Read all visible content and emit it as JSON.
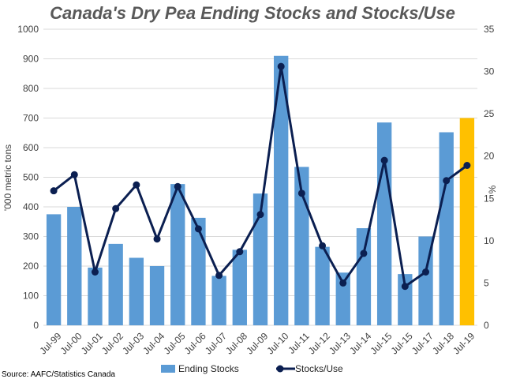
{
  "chart_data": {
    "type": "bar",
    "title": "Canada's Dry Pea Ending Stocks and Stocks/Use",
    "source": "Source: AAFC/Statistics Canada",
    "ylabel": "'000 metric tons",
    "y2label": "%",
    "ylim": [
      0,
      1000
    ],
    "y2lim": [
      0,
      35
    ],
    "yticks": [
      "0",
      "100",
      "200",
      "300",
      "400",
      "500",
      "600",
      "700",
      "800",
      "900",
      "1000"
    ],
    "y2ticks": [
      "0",
      "5",
      "10",
      "15",
      "20",
      "25",
      "30",
      "35"
    ],
    "grid": true,
    "legend_position": "bottom",
    "categories": [
      "Jul-99",
      "Jul-00",
      "Jul-01",
      "Jul-02",
      "Jul-03",
      "Jul-04",
      "Jul-05",
      "Jul-06",
      "Jul-07",
      "Jul-08",
      "Jul-09",
      "Jul-10",
      "Jul-11",
      "Jul-12",
      "Jul-13",
      "Jul-14",
      "Jul-15",
      "Jul-15",
      "Jul-17",
      "Jul-18",
      "Jul-19"
    ],
    "series": [
      {
        "name": "Ending Stocks",
        "type": "bar",
        "axis": "left",
        "color": "#5B9BD5",
        "highlight_color": "#FFC000",
        "highlight_index": 20,
        "values": [
          375,
          400,
          195,
          275,
          228,
          200,
          477,
          363,
          167,
          255,
          445,
          910,
          535,
          265,
          178,
          328,
          685,
          173,
          300,
          652,
          700
        ]
      },
      {
        "name": "Stocks/Use",
        "type": "line",
        "axis": "right",
        "color": "#0B1F51",
        "values": [
          15.9,
          17.8,
          6.3,
          13.8,
          16.6,
          10.2,
          16.4,
          11.4,
          5.9,
          8.7,
          13.1,
          30.6,
          15.6,
          9.4,
          5.0,
          8.5,
          19.5,
          4.6,
          6.3,
          17.1,
          18.9
        ]
      }
    ]
  }
}
